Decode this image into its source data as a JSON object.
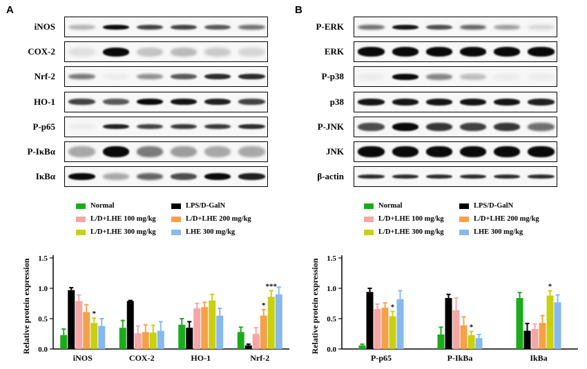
{
  "panels": {
    "left_letter": "A",
    "right_letter": "B"
  },
  "blots_left": [
    {
      "label": "iNOS",
      "intensity": [
        0.25,
        1.0,
        0.75,
        0.75,
        0.65,
        0.55
      ],
      "bandHeight": 7
    },
    {
      "label": "COX-2",
      "intensity": [
        0.05,
        1.0,
        0.18,
        0.22,
        0.15,
        0.1
      ],
      "bandHeight": 13
    },
    {
      "label": "Nrf-2",
      "intensity": [
        0.5,
        0.0,
        0.4,
        0.65,
        0.85,
        0.85
      ],
      "bandHeight": 8
    },
    {
      "label": "HO-1",
      "intensity": [
        0.75,
        0.65,
        1.0,
        0.95,
        0.9,
        0.75
      ],
      "bandHeight": 9
    },
    {
      "label": "P-p65",
      "intensity": [
        0.0,
        0.9,
        0.75,
        0.8,
        0.8,
        0.85
      ],
      "bandHeight": 7
    },
    {
      "label": "P-IκBα",
      "intensity": [
        0.3,
        1.0,
        0.5,
        0.35,
        0.3,
        0.3
      ],
      "bandHeight": 16
    },
    {
      "label": "IκBα",
      "intensity": [
        1.0,
        0.3,
        0.6,
        0.7,
        1.0,
        0.9
      ],
      "bandHeight": 10
    }
  ],
  "blots_right": [
    {
      "label": "P-ERK",
      "intensity": [
        0.55,
        0.95,
        0.7,
        0.6,
        0.35,
        0.1
      ],
      "bandHeight": 7
    },
    {
      "label": "ERK",
      "intensity": [
        1.0,
        1.0,
        1.0,
        1.0,
        1.0,
        1.0
      ],
      "bandHeight": 14
    },
    {
      "label": "P-p38",
      "intensity": [
        0.0,
        1.0,
        0.45,
        0.2,
        0.0,
        0.0
      ],
      "bandHeight": 9
    },
    {
      "label": "p38",
      "intensity": [
        0.95,
        0.95,
        0.95,
        0.95,
        0.95,
        0.9
      ],
      "bandHeight": 10
    },
    {
      "label": "P-JNK",
      "intensity": [
        0.7,
        1.0,
        0.8,
        0.75,
        0.8,
        0.55
      ],
      "bandHeight": 12
    },
    {
      "label": "JNK",
      "intensity": [
        1.0,
        1.0,
        1.0,
        1.0,
        1.0,
        1.0
      ],
      "bandHeight": 16
    },
    {
      "label": "β-actin",
      "intensity": [
        0.85,
        0.85,
        0.85,
        0.85,
        0.85,
        0.85
      ],
      "bandHeight": 6
    }
  ],
  "legend": [
    {
      "name": "Normal",
      "color": "#1aad19"
    },
    {
      "name": "LPS/D-GalN",
      "color": "#000000"
    },
    {
      "name": "L/D+LHE 100 mg/kg",
      "color": "#f7a6a6"
    },
    {
      "name": "L/D+LHE 200 mg/kg",
      "color": "#f5a14a"
    },
    {
      "name": "L/D+LHE 300 mg/kg",
      "color": "#c9d010"
    },
    {
      "name": "LHE 300 mg/kg",
      "color": "#86b9ee"
    }
  ],
  "chart_data": [
    {
      "type": "bar",
      "ylabel": "Relative protein expression",
      "ylim": [
        0,
        1.5
      ],
      "yticks": [
        "0.0",
        "0.5",
        "1.0",
        "1.5"
      ],
      "categories": [
        "iNOS",
        "COX-2",
        "HO-1",
        "Nrf-2"
      ],
      "series": [
        {
          "name": "Normal",
          "color": "#1aad19",
          "values": [
            0.23,
            0.35,
            0.4,
            0.28
          ],
          "err": [
            0.1,
            0.12,
            0.1,
            0.08
          ]
        },
        {
          "name": "LPS/D-GalN",
          "color": "#000000",
          "values": [
            0.97,
            0.79,
            0.35,
            0.06
          ],
          "err": [
            0.04,
            0.01,
            0.1,
            0.02
          ]
        },
        {
          "name": "L/D+LHE 100 mg/kg",
          "color": "#f7a6a6",
          "values": [
            0.79,
            0.26,
            0.67,
            0.25
          ],
          "err": [
            0.1,
            0.12,
            0.08,
            0.1
          ]
        },
        {
          "name": "L/D+LHE 200 mg/kg",
          "color": "#f5a14a",
          "values": [
            0.61,
            0.28,
            0.69,
            0.55
          ],
          "err": [
            0.12,
            0.12,
            0.08,
            0.1
          ]
        },
        {
          "name": "L/D+LHE 300 mg/kg",
          "color": "#c9d010",
          "values": [
            0.43,
            0.27,
            0.8,
            0.86
          ],
          "err": [
            0.08,
            0.12,
            0.1,
            0.1
          ]
        },
        {
          "name": "LHE 300 mg/kg",
          "color": "#86b9ee",
          "values": [
            0.38,
            0.3,
            0.55,
            0.9
          ],
          "err": [
            0.12,
            0.15,
            0.12,
            0.12
          ]
        }
      ],
      "annotations": [
        {
          "category": "iNOS",
          "series": 4,
          "text": "*"
        },
        {
          "category": "Nrf-2",
          "series": 3,
          "text": "*"
        },
        {
          "category": "Nrf-2",
          "series": 4,
          "text": "***"
        }
      ]
    },
    {
      "type": "bar",
      "ylabel": "Relative protein expression",
      "ylim": [
        0,
        1.5
      ],
      "yticks": [
        "0.0",
        "0.5",
        "1.0",
        "1.5"
      ],
      "categories": [
        "P-p65",
        "P-IkBa",
        "IkBa"
      ],
      "series": [
        {
          "name": "Normal",
          "color": "#1aad19",
          "values": [
            0.06,
            0.24,
            0.84
          ],
          "err": [
            0.02,
            0.12,
            0.09
          ]
        },
        {
          "name": "LPS/D-GalN",
          "color": "#000000",
          "values": [
            0.94,
            0.84,
            0.3
          ],
          "err": [
            0.06,
            0.06,
            0.12
          ]
        },
        {
          "name": "L/D+LHE 100 mg/kg",
          "color": "#f7a6a6",
          "values": [
            0.66,
            0.64,
            0.33
          ],
          "err": [
            0.08,
            0.2,
            0.08
          ]
        },
        {
          "name": "L/D+LHE 200 mg/kg",
          "color": "#f5a14a",
          "values": [
            0.68,
            0.39,
            0.43
          ],
          "err": [
            0.08,
            0.14,
            0.12
          ]
        },
        {
          "name": "L/D+LHE 300 mg/kg",
          "color": "#c9d010",
          "values": [
            0.54,
            0.23,
            0.88
          ],
          "err": [
            0.08,
            0.06,
            0.08
          ]
        },
        {
          "name": "LHE 300 mg/kg",
          "color": "#86b9ee",
          "values": [
            0.82,
            0.18,
            0.77
          ],
          "err": [
            0.14,
            0.06,
            0.12
          ]
        }
      ],
      "annotations": [
        {
          "category": "P-p65",
          "series": 4,
          "text": "*"
        },
        {
          "category": "P-IkBa",
          "series": 4,
          "text": "*"
        },
        {
          "category": "IkBa",
          "series": 4,
          "text": "*"
        }
      ]
    }
  ]
}
